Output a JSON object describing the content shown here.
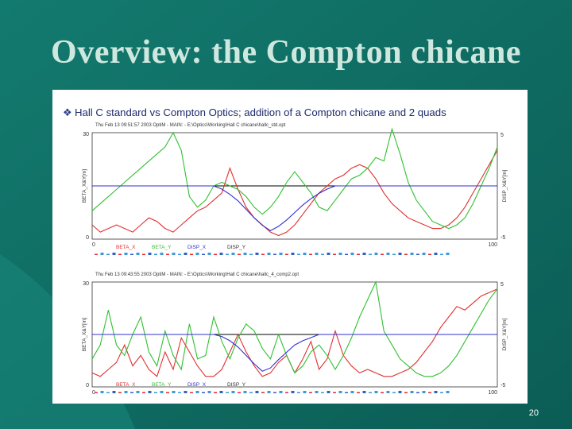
{
  "slide": {
    "title": "Overview: the Compton chicane",
    "page_number": "20",
    "colors": {
      "background": "#0f6c62",
      "title": "#cfe8df"
    }
  },
  "panel": {
    "bullet_icon": "diamond-bullet-icon",
    "heading": "Hall C standard vs Compton Optics; addition of a Compton chicane and 2 quads"
  },
  "chart_data": [
    {
      "type": "line",
      "header": "Thu Feb 13 09:51:57 2003    OptiM - MAIN: - E:\\Optics\\Working\\Hall C chicane\\hallc_std.opt",
      "xlim": [
        0,
        100
      ],
      "xticks": [
        "0",
        "100"
      ],
      "ylim_left": [
        0,
        30
      ],
      "yticks_left": [
        "0",
        "30"
      ],
      "ylabel_left": "BETA_X&Y[m]",
      "ylim_right": [
        -5,
        5
      ],
      "yticks_right": [
        "-5",
        "5"
      ],
      "ylabel_right": "DISP_X&Y[m]",
      "legend": [
        "BETA_X",
        "BETA_Y",
        "DISP_X",
        "DISP_Y"
      ],
      "series": [
        {
          "name": "BETA_X",
          "axis": "left",
          "color": "#e03030",
          "x": [
            0,
            2,
            4,
            6,
            8,
            10,
            12,
            14,
            16,
            18,
            20,
            22,
            24,
            26,
            28,
            30,
            32,
            34,
            36,
            38,
            40,
            42,
            44,
            46,
            48,
            50,
            52,
            54,
            56,
            58,
            60,
            62,
            64,
            66,
            68,
            70,
            72,
            74,
            76,
            78,
            80,
            82,
            84,
            86,
            88,
            90,
            92,
            94,
            96,
            98,
            100
          ],
          "y": [
            4,
            2,
            3,
            4,
            3,
            2,
            4,
            6,
            5,
            3,
            2,
            4,
            6,
            8,
            9,
            11,
            13,
            20,
            14,
            9,
            6,
            4,
            2,
            1,
            2,
            4,
            7,
            10,
            13,
            15,
            17,
            18,
            20,
            21,
            20,
            17,
            13,
            10,
            8,
            6,
            5,
            4,
            3,
            3,
            4,
            6,
            9,
            13,
            17,
            21,
            25
          ]
        },
        {
          "name": "BETA_Y",
          "axis": "left",
          "color": "#30c030",
          "x": [
            0,
            2,
            4,
            6,
            8,
            10,
            12,
            14,
            16,
            18,
            20,
            22,
            24,
            26,
            28,
            30,
            32,
            34,
            36,
            38,
            40,
            42,
            44,
            46,
            48,
            50,
            52,
            54,
            56,
            58,
            60,
            62,
            64,
            66,
            68,
            70,
            72,
            74,
            76,
            78,
            80,
            82,
            84,
            86,
            88,
            90,
            92,
            94,
            96,
            98,
            100
          ],
          "y": [
            8,
            10,
            12,
            14,
            16,
            18,
            20,
            22,
            24,
            26,
            30,
            25,
            12,
            9,
            11,
            15,
            16,
            15,
            14,
            12,
            9,
            7,
            9,
            12,
            16,
            19,
            16,
            13,
            9,
            8,
            11,
            14,
            17,
            18,
            20,
            23,
            22,
            31,
            24,
            16,
            11,
            8,
            5,
            4,
            3,
            4,
            6,
            10,
            15,
            20,
            26
          ]
        },
        {
          "name": "DISP_X",
          "axis": "right",
          "color": "#3030d0",
          "x": [
            0,
            10,
            20,
            30,
            32,
            34,
            36,
            38,
            40,
            42,
            44,
            46,
            48,
            50,
            52,
            54,
            56,
            58,
            60,
            62,
            64,
            70,
            80,
            90,
            100
          ],
          "y": [
            0,
            0,
            0,
            0,
            -0.3,
            -0.8,
            -1.4,
            -2.2,
            -3.0,
            -3.7,
            -4.2,
            -3.8,
            -3.2,
            -2.5,
            -1.8,
            -1.2,
            -0.7,
            -0.3,
            0,
            0,
            0,
            0,
            0,
            0,
            0
          ]
        },
        {
          "name": "DISP_Y",
          "axis": "right",
          "color": "#000000",
          "x": [
            0,
            100
          ],
          "y": [
            0,
            0
          ]
        }
      ]
    },
    {
      "type": "line",
      "header": "Thu Feb 13 09:43:55 2003    OptiM - MAIN: - E:\\Optics\\Working\\Hall C chicane\\hallc_4_comp2.opt",
      "xlim": [
        0,
        100
      ],
      "xticks": [
        "0",
        "100"
      ],
      "ylim_left": [
        0,
        30
      ],
      "yticks_left": [
        "0",
        "30"
      ],
      "ylabel_left": "BETA_X&Y[m]",
      "ylim_right": [
        -5,
        5
      ],
      "yticks_right": [
        "-5",
        "5"
      ],
      "ylabel_right": "DISP_X&Y[m]",
      "legend": [
        "BETA_X",
        "BETA_Y",
        "DISP_X",
        "DISP_Y"
      ],
      "series": [
        {
          "name": "BETA_X",
          "axis": "left",
          "color": "#e03030",
          "x": [
            0,
            2,
            4,
            6,
            8,
            10,
            12,
            14,
            16,
            18,
            20,
            22,
            24,
            26,
            28,
            30,
            32,
            34,
            36,
            38,
            40,
            42,
            44,
            46,
            48,
            50,
            52,
            54,
            56,
            58,
            60,
            62,
            64,
            66,
            68,
            70,
            72,
            74,
            76,
            78,
            80,
            82,
            84,
            86,
            88,
            90,
            92,
            94,
            96,
            98,
            100
          ],
          "y": [
            4,
            3,
            5,
            7,
            12,
            6,
            9,
            5,
            3,
            10,
            5,
            14,
            10,
            6,
            3,
            3,
            5,
            10,
            15,
            10,
            6,
            3,
            4,
            7,
            9,
            4,
            8,
            13,
            5,
            8,
            16,
            9,
            6,
            4,
            5,
            4,
            3,
            3,
            4,
            5,
            7,
            10,
            13,
            17,
            20,
            23,
            22,
            24,
            26,
            27,
            28
          ]
        },
        {
          "name": "BETA_Y",
          "axis": "left",
          "color": "#30c030",
          "x": [
            0,
            2,
            4,
            6,
            8,
            10,
            12,
            14,
            16,
            18,
            20,
            22,
            24,
            26,
            28,
            30,
            32,
            34,
            36,
            38,
            40,
            42,
            44,
            46,
            48,
            50,
            52,
            54,
            56,
            58,
            60,
            62,
            64,
            66,
            68,
            70,
            72,
            74,
            76,
            78,
            80,
            82,
            84,
            86,
            88,
            90,
            92,
            94,
            96,
            98,
            100
          ],
          "y": [
            8,
            12,
            22,
            12,
            9,
            15,
            20,
            10,
            6,
            16,
            9,
            5,
            18,
            8,
            9,
            20,
            13,
            8,
            14,
            18,
            16,
            11,
            8,
            15,
            9,
            4,
            6,
            10,
            12,
            9,
            5,
            9,
            14,
            20,
            25,
            30,
            16,
            12,
            8,
            6,
            4,
            3,
            3,
            4,
            6,
            9,
            13,
            17,
            21,
            25,
            28
          ]
        },
        {
          "name": "DISP_X",
          "axis": "right",
          "color": "#3030d0",
          "x": [
            0,
            10,
            20,
            30,
            32,
            34,
            36,
            38,
            40,
            42,
            44,
            46,
            48,
            50,
            52,
            54,
            56,
            58,
            60,
            62,
            64,
            70,
            80,
            90,
            100
          ],
          "y": [
            0,
            0,
            0,
            0,
            -0.2,
            -0.6,
            -1.2,
            -2.0,
            -2.8,
            -3.5,
            -3.2,
            -2.4,
            -1.7,
            -1.0,
            -0.6,
            -0.3,
            0,
            0,
            0,
            0,
            0,
            0,
            0,
            0,
            0
          ]
        },
        {
          "name": "DISP_Y",
          "axis": "right",
          "color": "#000000",
          "x": [
            0,
            100
          ],
          "y": [
            0,
            0
          ]
        }
      ]
    }
  ]
}
